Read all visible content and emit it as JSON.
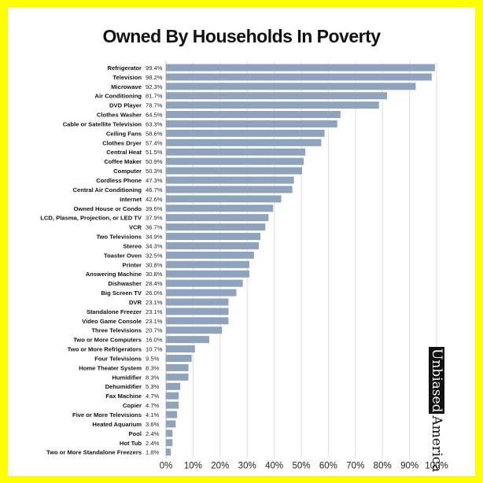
{
  "chart_data": {
    "type": "bar",
    "orientation": "horizontal",
    "title": "Owned By Households In Poverty",
    "xlabel": "",
    "ylabel": "",
    "xlim": [
      0,
      100
    ],
    "x_ticks": [
      "0%",
      "10%",
      "20%",
      "30%",
      "40%",
      "50%",
      "60%",
      "70%",
      "80%",
      "90%",
      "100%"
    ],
    "grid": "vertical",
    "bar_color": "#8fa3bc",
    "categories": [
      "Refrigerator",
      "Television",
      "Microwave",
      "Air Conditioning",
      "DVD Player",
      "Clothes Washer",
      "Cable or Satellite Television",
      "Ceiling Fans",
      "Clothes Dryer",
      "Central Heat",
      "Coffee Maker",
      "Computer",
      "Cordless Phone",
      "Central Air Conditioning",
      "Internet",
      "Owned House or Condo",
      "LCD, Plasma, Projection, or LED TV",
      "VCR",
      "Two Televisions",
      "Stereo",
      "Toaster Oven",
      "Printer",
      "Answering Machine",
      "Dishwasher",
      "Big Screen TV",
      "DVR",
      "Standalone Freezer",
      "Video Game Console",
      "Three Televisions",
      "Two or More Computers",
      "Two or More Refrigerators",
      "Four Televisions",
      "Home Theater System",
      "Humidifier",
      "Dehumidifier",
      "Fax Machine",
      "Copier",
      "Five or More Televisions",
      "Heated Aquarium",
      "Pool",
      "Hot Tub",
      "Two or More Standalone Freezers"
    ],
    "values": [
      99.4,
      98.2,
      92.3,
      81.7,
      78.7,
      64.5,
      63.3,
      58.6,
      57.4,
      51.5,
      50.9,
      50.3,
      47.3,
      46.7,
      42.6,
      39.6,
      37.9,
      36.7,
      34.9,
      34.3,
      32.5,
      30.8,
      30.8,
      28.4,
      26.0,
      23.1,
      23.1,
      23.1,
      20.7,
      16.0,
      10.7,
      9.5,
      8.3,
      8.3,
      5.3,
      4.7,
      4.7,
      4.1,
      3.6,
      2.4,
      2.4,
      1.8
    ],
    "value_labels": [
      "99.4%",
      "98.2%",
      "92.3%",
      "81.7%",
      "78.7%",
      "64.5%",
      "63.3%",
      "58.6%",
      "57.4%",
      "51.5%",
      "50.9%",
      "50.3%",
      "47.3%",
      "46.7%",
      "42.6%",
      "39.6%",
      "37.9%",
      "36.7%",
      "34.9%",
      "34.3%",
      "32.5%",
      "30.8%",
      "30.8%",
      "28.4%",
      "26.0%",
      "23.1%",
      "23.1%",
      "23.1%",
      "20.7%",
      "16.0%",
      "10.7%",
      "9.5%",
      "8.3%",
      "8.3%",
      "5.3%",
      "4.7%",
      "4.7%",
      "4.1%",
      "3.6%",
      "2.4%",
      "2.4%",
      "1.8%"
    ]
  },
  "branding": {
    "part1": "Unbiased",
    "part2": "America"
  }
}
